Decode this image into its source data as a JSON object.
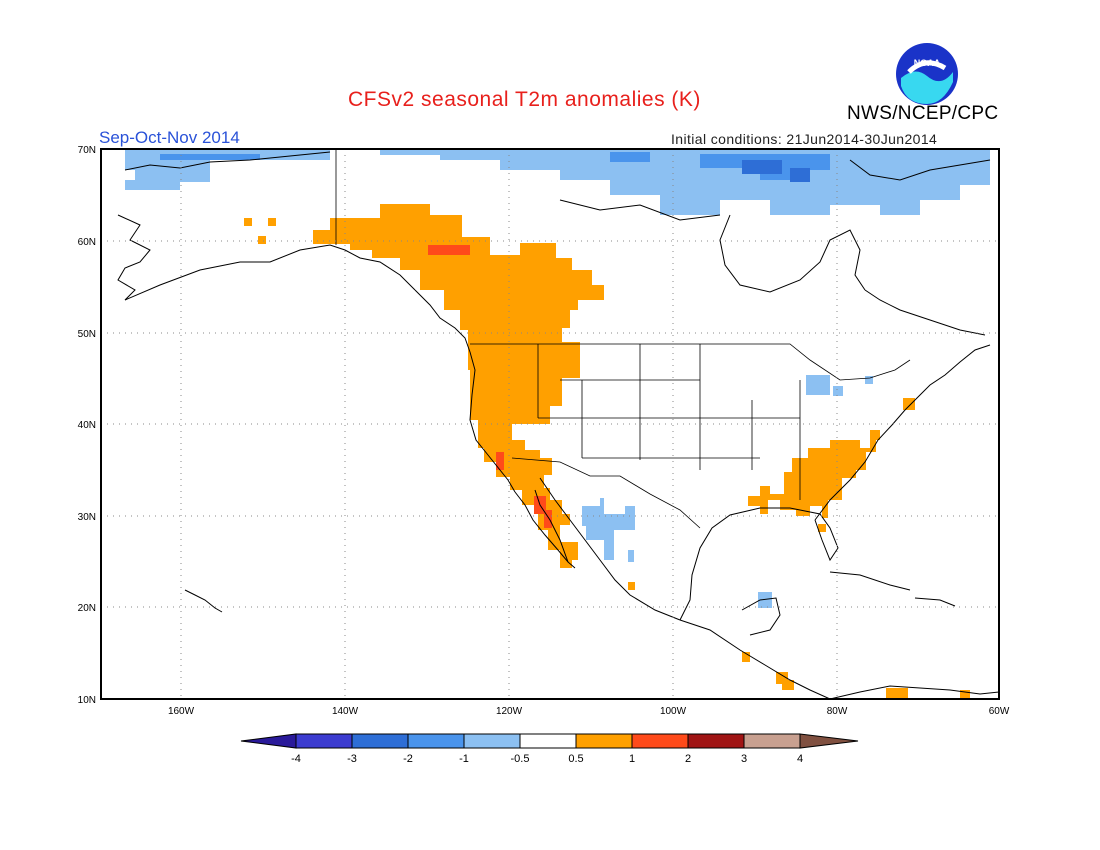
{
  "header": {
    "title": "CFSv2 seasonal T2m anomalies (K)",
    "season": "Sep-Oct-Nov 2014",
    "initial_conditions": "Initial conditions: 21Jun2014-30Jun2014",
    "agency": "NWS/NCEP/CPC",
    "logo_text": "NOAA"
  },
  "map": {
    "lon_range": [
      -172,
      -60
    ],
    "lat_range": [
      10,
      70
    ],
    "lat_ticks": [
      "10N",
      "20N",
      "30N",
      "40N",
      "50N",
      "60N",
      "70N"
    ],
    "lon_ticks": [
      "160W",
      "140W",
      "120W",
      "100W",
      "80W",
      "60W"
    ]
  },
  "colorbar": {
    "labels": [
      "-4",
      "-3",
      "-2",
      "-1",
      "-0.5",
      "0.5",
      "1",
      "2",
      "3",
      "4"
    ],
    "colors": [
      "#2a1a9a",
      "#3c3cd0",
      "#2e6ed6",
      "#4a94ec",
      "#8cc0f2",
      "#ffffff",
      "#ffa000",
      "#ff4a1a",
      "#a01414",
      "#c8a090",
      "#805040"
    ]
  },
  "colors": {
    "warm": "#ffa000",
    "hot": "#ff4a1a",
    "cool": "#8cc0f2",
    "cold": "#4a94ec",
    "colder": "#2e6ed6",
    "title": "#e8201c",
    "season": "#2a52d8"
  }
}
